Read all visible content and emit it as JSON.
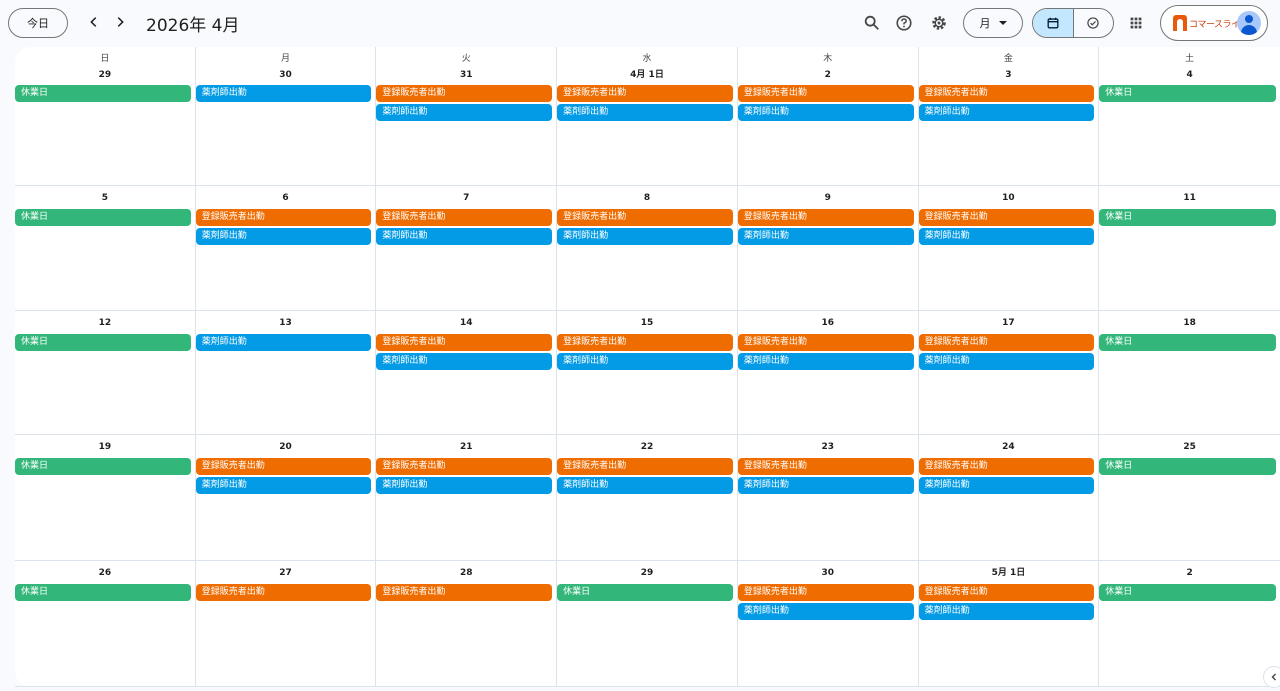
{
  "header": {
    "today_label": "今日",
    "month_title": "2026年 4月",
    "view_label": "月",
    "brand": "コマースライフ"
  },
  "icons": {
    "prev": "chevron-left-icon",
    "next": "chevron-right-icon",
    "search": "search-icon",
    "help": "help-icon",
    "settings": "gear-icon",
    "calendar_view": "calendar-icon",
    "tasks_view": "task-check-icon",
    "apps": "apps-grid-icon",
    "sidebar": "chevron-left-icon"
  },
  "colors": {
    "holiday": "#33b679",
    "seller": "#ef6c00",
    "pharmacist": "#039be5"
  },
  "weekdays": [
    "日",
    "月",
    "火",
    "水",
    "木",
    "金",
    "土"
  ],
  "weeks": [
    [
      {
        "day": "29",
        "events": [
          {
            "label": "休業日",
            "color": "green"
          }
        ]
      },
      {
        "day": "30",
        "events": [
          {
            "label": "薬剤師出勤",
            "color": "blue"
          }
        ]
      },
      {
        "day": "31",
        "events": [
          {
            "label": "登録販売者出勤",
            "color": "orange"
          },
          {
            "label": "薬剤師出勤",
            "color": "blue"
          }
        ]
      },
      {
        "day": "4月 1日",
        "events": [
          {
            "label": "登録販売者出勤",
            "color": "orange"
          },
          {
            "label": "薬剤師出勤",
            "color": "blue"
          }
        ]
      },
      {
        "day": "2",
        "events": [
          {
            "label": "登録販売者出勤",
            "color": "orange"
          },
          {
            "label": "薬剤師出勤",
            "color": "blue"
          }
        ]
      },
      {
        "day": "3",
        "events": [
          {
            "label": "登録販売者出勤",
            "color": "orange"
          },
          {
            "label": "薬剤師出勤",
            "color": "blue"
          }
        ]
      },
      {
        "day": "4",
        "events": [
          {
            "label": "休業日",
            "color": "green"
          }
        ]
      }
    ],
    [
      {
        "day": "5",
        "events": [
          {
            "label": "休業日",
            "color": "green"
          }
        ]
      },
      {
        "day": "6",
        "events": [
          {
            "label": "登録販売者出勤",
            "color": "orange"
          },
          {
            "label": "薬剤師出勤",
            "color": "blue"
          }
        ]
      },
      {
        "day": "7",
        "events": [
          {
            "label": "登録販売者出勤",
            "color": "orange"
          },
          {
            "label": "薬剤師出勤",
            "color": "blue"
          }
        ]
      },
      {
        "day": "8",
        "events": [
          {
            "label": "登録販売者出勤",
            "color": "orange"
          },
          {
            "label": "薬剤師出勤",
            "color": "blue"
          }
        ]
      },
      {
        "day": "9",
        "events": [
          {
            "label": "登録販売者出勤",
            "color": "orange"
          },
          {
            "label": "薬剤師出勤",
            "color": "blue"
          }
        ]
      },
      {
        "day": "10",
        "events": [
          {
            "label": "登録販売者出勤",
            "color": "orange"
          },
          {
            "label": "薬剤師出勤",
            "color": "blue"
          }
        ]
      },
      {
        "day": "11",
        "events": [
          {
            "label": "休業日",
            "color": "green"
          }
        ]
      }
    ],
    [
      {
        "day": "12",
        "events": [
          {
            "label": "休業日",
            "color": "green"
          }
        ]
      },
      {
        "day": "13",
        "events": [
          {
            "label": "薬剤師出勤",
            "color": "blue"
          }
        ]
      },
      {
        "day": "14",
        "events": [
          {
            "label": "登録販売者出勤",
            "color": "orange"
          },
          {
            "label": "薬剤師出勤",
            "color": "blue"
          }
        ]
      },
      {
        "day": "15",
        "events": [
          {
            "label": "登録販売者出勤",
            "color": "orange"
          },
          {
            "label": "薬剤師出勤",
            "color": "blue"
          }
        ]
      },
      {
        "day": "16",
        "events": [
          {
            "label": "登録販売者出勤",
            "color": "orange"
          },
          {
            "label": "薬剤師出勤",
            "color": "blue"
          }
        ]
      },
      {
        "day": "17",
        "events": [
          {
            "label": "登録販売者出勤",
            "color": "orange"
          },
          {
            "label": "薬剤師出勤",
            "color": "blue"
          }
        ]
      },
      {
        "day": "18",
        "events": [
          {
            "label": "休業日",
            "color": "green"
          }
        ]
      }
    ],
    [
      {
        "day": "19",
        "events": [
          {
            "label": "休業日",
            "color": "green"
          }
        ]
      },
      {
        "day": "20",
        "events": [
          {
            "label": "登録販売者出勤",
            "color": "orange"
          },
          {
            "label": "薬剤師出勤",
            "color": "blue"
          }
        ]
      },
      {
        "day": "21",
        "events": [
          {
            "label": "登録販売者出勤",
            "color": "orange"
          },
          {
            "label": "薬剤師出勤",
            "color": "blue"
          }
        ]
      },
      {
        "day": "22",
        "events": [
          {
            "label": "登録販売者出勤",
            "color": "orange"
          },
          {
            "label": "薬剤師出勤",
            "color": "blue"
          }
        ]
      },
      {
        "day": "23",
        "events": [
          {
            "label": "登録販売者出勤",
            "color": "orange"
          },
          {
            "label": "薬剤師出勤",
            "color": "blue"
          }
        ]
      },
      {
        "day": "24",
        "events": [
          {
            "label": "登録販売者出勤",
            "color": "orange"
          },
          {
            "label": "薬剤師出勤",
            "color": "blue"
          }
        ]
      },
      {
        "day": "25",
        "events": [
          {
            "label": "休業日",
            "color": "green"
          }
        ]
      }
    ],
    [
      {
        "day": "26",
        "events": [
          {
            "label": "休業日",
            "color": "green"
          }
        ]
      },
      {
        "day": "27",
        "events": [
          {
            "label": "登録販売者出勤",
            "color": "orange"
          }
        ]
      },
      {
        "day": "28",
        "events": [
          {
            "label": "登録販売者出勤",
            "color": "orange"
          }
        ]
      },
      {
        "day": "29",
        "events": [
          {
            "label": "休業日",
            "color": "green"
          }
        ]
      },
      {
        "day": "30",
        "events": [
          {
            "label": "登録販売者出勤",
            "color": "orange"
          },
          {
            "label": "薬剤師出勤",
            "color": "blue"
          }
        ]
      },
      {
        "day": "5月 1日",
        "events": [
          {
            "label": "登録販売者出勤",
            "color": "orange"
          },
          {
            "label": "薬剤師出勤",
            "color": "blue"
          }
        ]
      },
      {
        "day": "2",
        "events": [
          {
            "label": "休業日",
            "color": "green"
          }
        ]
      }
    ]
  ]
}
